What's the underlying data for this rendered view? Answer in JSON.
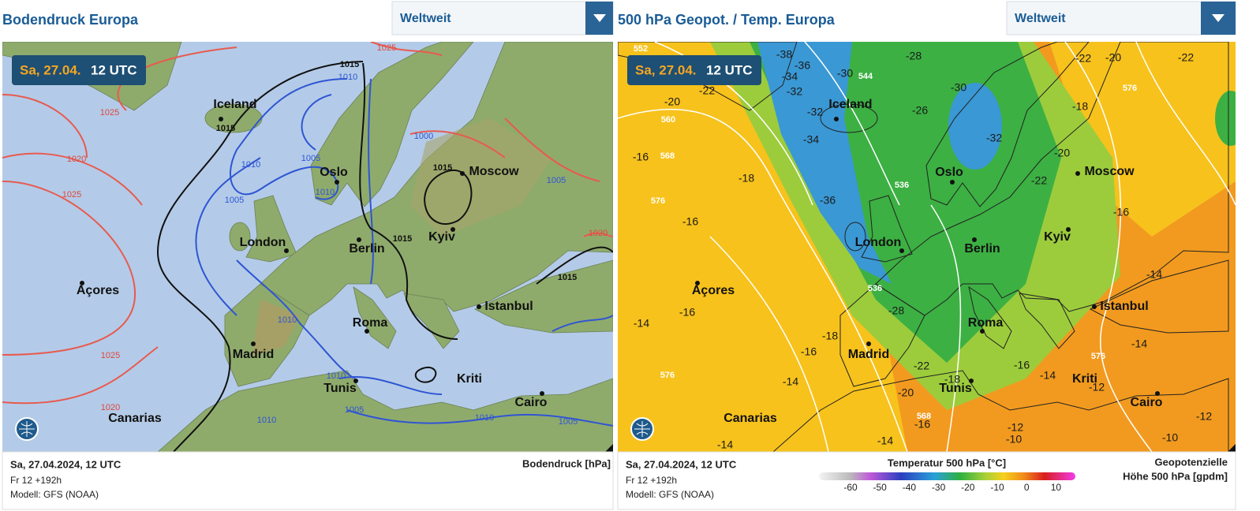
{
  "left_panel": {
    "title": "Bodendruck Europa",
    "dropdown": "Weltweit",
    "badge_date": "Sa, 27.04.",
    "badge_time": "12 UTC",
    "isobar_labels": [
      "1025",
      "1015",
      "1010",
      "1025",
      "1015",
      "1020",
      "1010",
      "1005",
      "1025",
      "1015",
      "1000",
      "1005",
      "1010",
      "1005",
      "1015",
      "1020",
      "1015",
      "1010",
      "1025",
      "1010",
      "1020",
      "1005",
      "1010",
      "1010",
      "1005"
    ],
    "footer": {
      "datetime": "Sa, 27.04.2024, 12 UTC",
      "run": "Fr 12 +192h",
      "model": "Modell: GFS (NOAA)",
      "unit": "Bodendruck [hPa]"
    }
  },
  "cities": [
    "Iceland",
    "Oslo",
    "Moscow",
    "London",
    "Berlin",
    "Kyiv",
    "Açores",
    "Istanbul",
    "Roma",
    "Madrid",
    "Kriti",
    "Tunis",
    "Cairo",
    "Canarias"
  ],
  "right_panel": {
    "title": "500 hPa Geopot. / Temp. Europa",
    "dropdown": "Weltweit",
    "badge_date": "Sa, 27.04.",
    "badge_time": "12 UTC",
    "temperature_labels": [
      "-28",
      "-22",
      "-20",
      "-22",
      "-38",
      "-36",
      "-34",
      "-32",
      "-30",
      "-22",
      "-20",
      "-32",
      "-26",
      "-30",
      "-18",
      "-34",
      "-32",
      "-16",
      "-18",
      "-36",
      "-16",
      "-20",
      "-22",
      "-16",
      "-14",
      "-16",
      "-14",
      "-28",
      "-18",
      "-16",
      "-22",
      "-18",
      "-16",
      "-14",
      "-14",
      "-12",
      "-14",
      "-20",
      "-16",
      "-14",
      "-14",
      "-12",
      "-10",
      "-10",
      "-12"
    ],
    "height_labels": [
      "552",
      "544",
      "560",
      "568",
      "576",
      "536",
      "536",
      "576",
      "576",
      "576",
      "568"
    ],
    "footer": {
      "datetime": "Sa, 27.04.2024, 12 UTC",
      "run": "Fr 12 +192h",
      "model": "Modell: GFS (NOAA)"
    },
    "legend": {
      "title": "Temperatur 500 hPa [°C]",
      "ticks": [
        "-60",
        "-50",
        "-40",
        "-30",
        "-20",
        "-10",
        "0",
        "10"
      ],
      "unit_line1": "Geopotenzielle",
      "unit_line2": "Höhe 500 hPa [gpdm]"
    }
  }
}
